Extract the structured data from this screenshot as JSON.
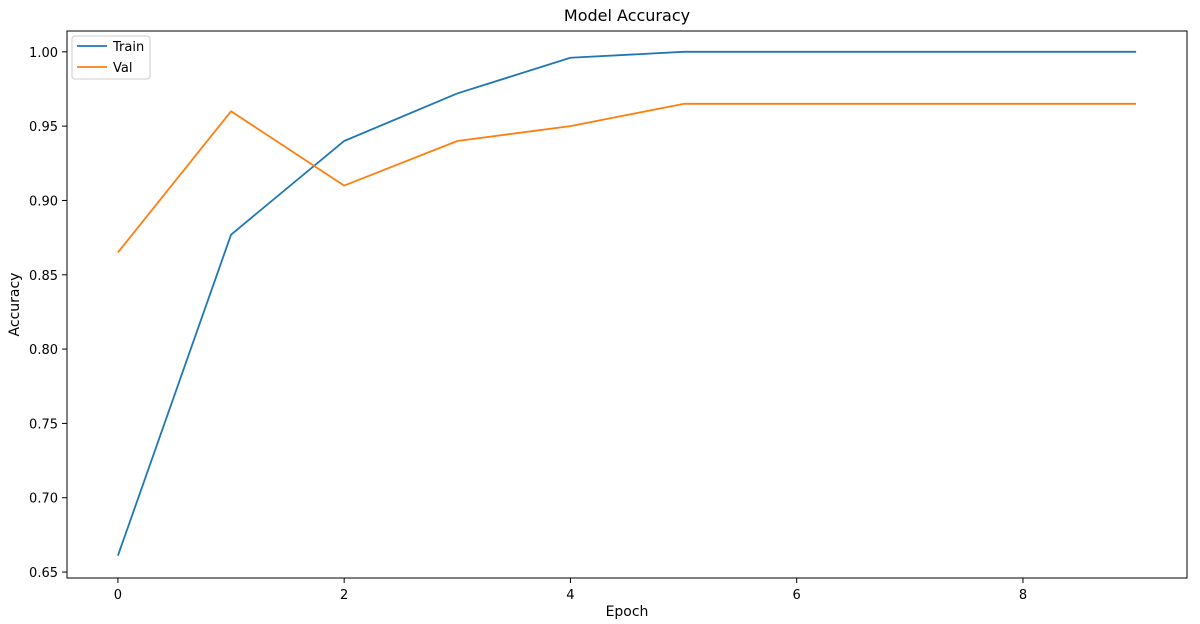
{
  "chart_data": {
    "type": "line",
    "title": "Model Accuracy",
    "xlabel": "Epoch",
    "ylabel": "Accuracy",
    "x": [
      0,
      1,
      2,
      3,
      4,
      5,
      6,
      7,
      8,
      9
    ],
    "xlim": [
      -0.45,
      9.45
    ],
    "ylim": [
      0.646,
      1.014
    ],
    "xticks": [
      0,
      2,
      4,
      6,
      8
    ],
    "yticks": [
      0.65,
      0.7,
      0.75,
      0.8,
      0.85,
      0.9,
      0.95,
      1.0
    ],
    "ytick_labels": [
      "0.65",
      "0.70",
      "0.75",
      "0.80",
      "0.85",
      "0.90",
      "0.95",
      "1.00"
    ],
    "grid": false,
    "legend_position": "top-left",
    "series": [
      {
        "name": "Train",
        "color": "#1f77b4",
        "values": [
          0.661,
          0.877,
          0.94,
          0.972,
          0.996,
          1.0,
          1.0,
          1.0,
          1.0,
          1.0
        ]
      },
      {
        "name": "Val",
        "color": "#ff7f0e",
        "values": [
          0.865,
          0.96,
          0.91,
          0.94,
          0.95,
          0.965,
          0.965,
          0.965,
          0.965,
          0.965
        ]
      }
    ]
  }
}
